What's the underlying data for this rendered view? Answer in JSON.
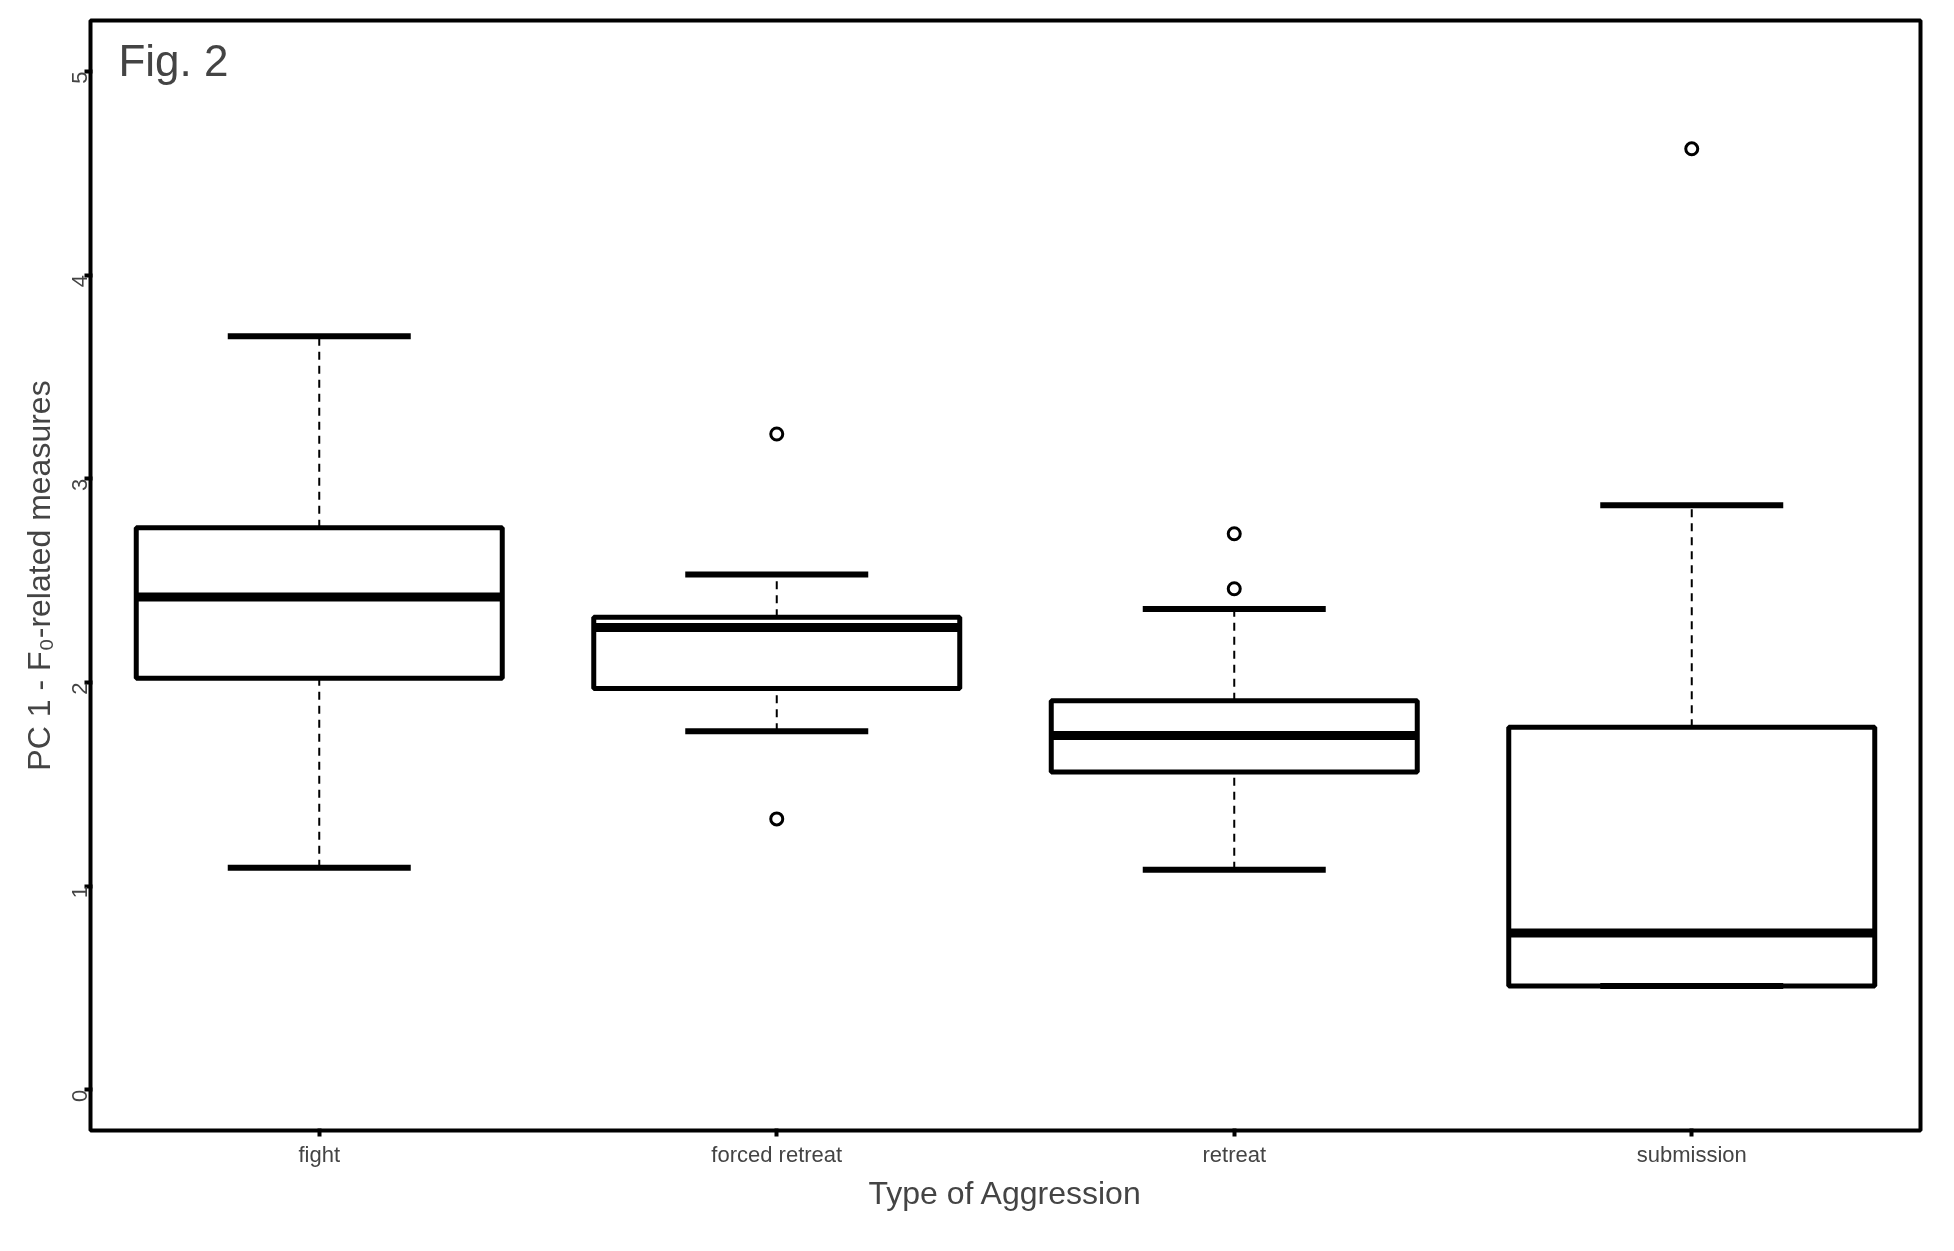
{
  "chart_data": {
    "type": "box",
    "xlabel": "Type of Aggression",
    "ylabel": "PC 1 - F₀-related measures",
    "annotations": [
      "Fig. 2"
    ],
    "categories": [
      "fight",
      "forced retreat",
      "retreat",
      "submission"
    ],
    "boxes": [
      {
        "low": 1.09,
        "q1": 2.02,
        "median": 2.42,
        "q3": 2.76,
        "high": 3.7
      },
      {
        "low": 1.76,
        "q1": 1.97,
        "median": 2.27,
        "q3": 2.32,
        "high": 2.53,
        "outliers": [
          3.22,
          1.33
        ]
      },
      {
        "low": 1.08,
        "q1": 1.56,
        "median": 1.74,
        "q3": 1.91,
        "high": 2.36,
        "outliers": [
          2.73,
          2.46
        ]
      },
      {
        "low": 0.51,
        "q1": 0.51,
        "median": 0.77,
        "q3": 1.78,
        "high": 2.87,
        "outliers": [
          4.62
        ]
      }
    ],
    "color": "#000000",
    "ylim": [
      -0.2,
      5.25
    ],
    "yticks": [
      0,
      1,
      2,
      3,
      4,
      5
    ],
    "grid": false
  }
}
